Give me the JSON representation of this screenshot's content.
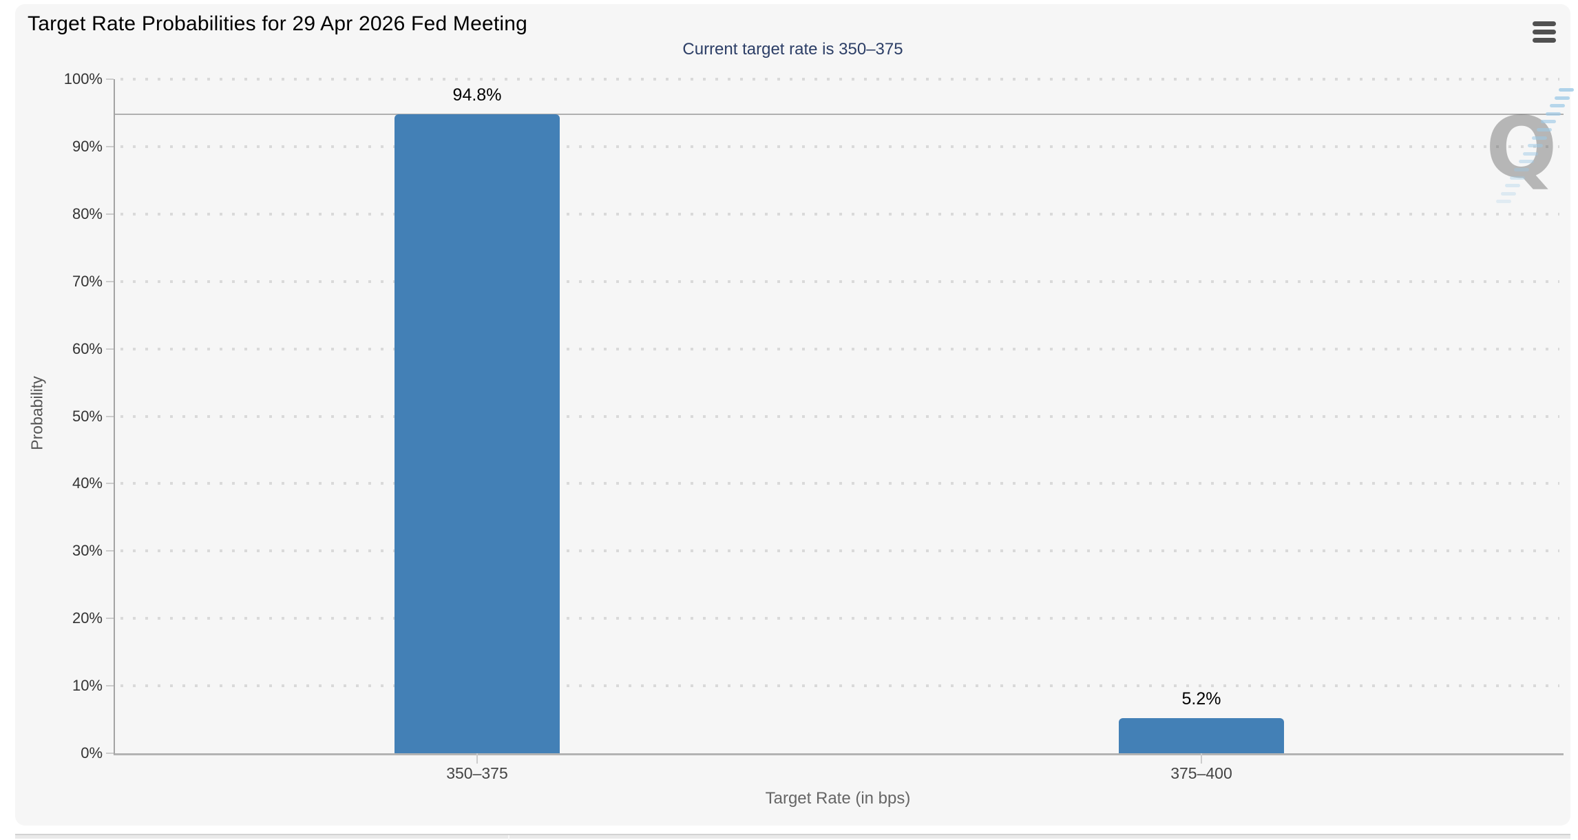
{
  "chart_data": {
    "type": "bar",
    "title": "Target Rate Probabilities for 29 Apr 2026 Fed Meeting",
    "subtitle": "Current target rate is 350–375",
    "xlabel": "Target Rate (in bps)",
    "ylabel": "Probability",
    "categories": [
      "350–375",
      "375–400"
    ],
    "values": [
      94.8,
      5.2
    ],
    "bar_labels": [
      "94.8%",
      "5.2%"
    ],
    "ylim": [
      0,
      100
    ],
    "ytick_step": 10,
    "ytick_labels": [
      "0%",
      "10%",
      "20%",
      "30%",
      "40%",
      "50%",
      "60%",
      "70%",
      "80%",
      "90%",
      "100%"
    ],
    "grid": "dotted-horizontal",
    "legend_position": "none",
    "reference_line_value": 94.8,
    "bar_color": "#4380b6"
  },
  "icons": {
    "menu_icon": "hamburger-menu-icon",
    "watermark_letter": "Q"
  },
  "colors": {
    "card_background": "#f6f6f6",
    "bar": "#4380b6",
    "subtitle_text": "#2c3e66",
    "axis_line": "#b3b3b3",
    "gridline": "#d9d9d9",
    "watermark_blue": "#9cc9e6"
  }
}
